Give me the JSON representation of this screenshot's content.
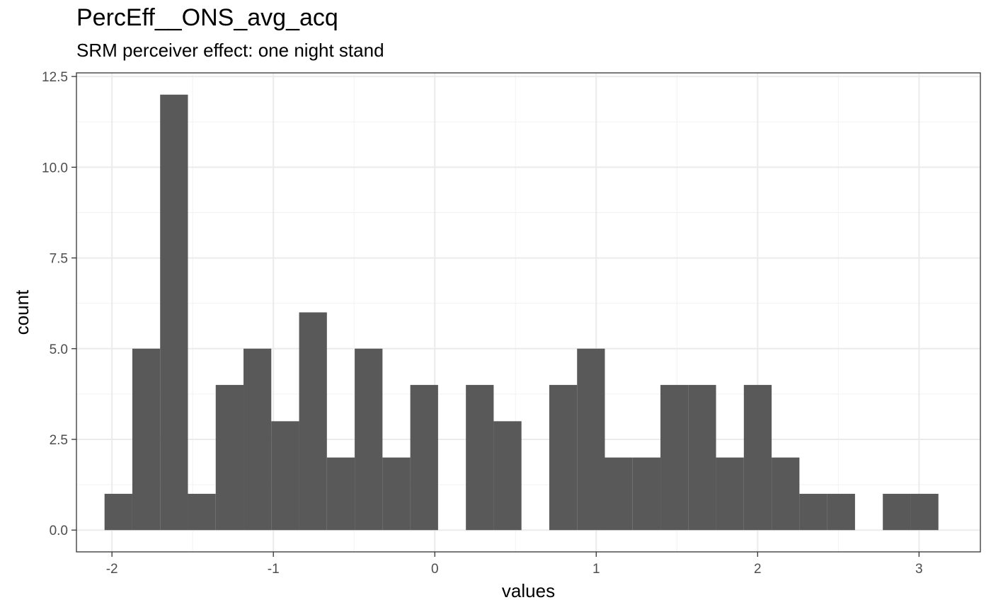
{
  "chart_data": {
    "type": "bar",
    "title": "PercEff__ONS_avg_acq",
    "subtitle": "SRM perceiver effect: one night stand",
    "xlabel": "values",
    "ylabel": "count",
    "xlim": [
      -2.22,
      3.38
    ],
    "ylim": [
      -0.6,
      12.6
    ],
    "x_ticks": [
      -2,
      -1,
      0,
      1,
      2,
      3
    ],
    "x_tick_labels": [
      "-2",
      "-1",
      "0",
      "1",
      "2",
      "3"
    ],
    "y_ticks": [
      0,
      2.5,
      5,
      7.5,
      10,
      12.5
    ],
    "y_tick_labels": [
      "0.0",
      "2.5",
      "5.0",
      "7.5",
      "10.0",
      "12.5"
    ],
    "grid": true,
    "bar_color": "#595959",
    "bins": {
      "start": -2.046,
      "width": 0.1722,
      "counts": [
        1,
        5,
        12,
        1,
        4,
        5,
        3,
        6,
        2,
        5,
        2,
        4,
        0,
        4,
        3,
        0,
        4,
        5,
        2,
        2,
        4,
        4,
        2,
        4,
        2,
        1,
        1,
        0,
        1,
        1
      ]
    }
  }
}
